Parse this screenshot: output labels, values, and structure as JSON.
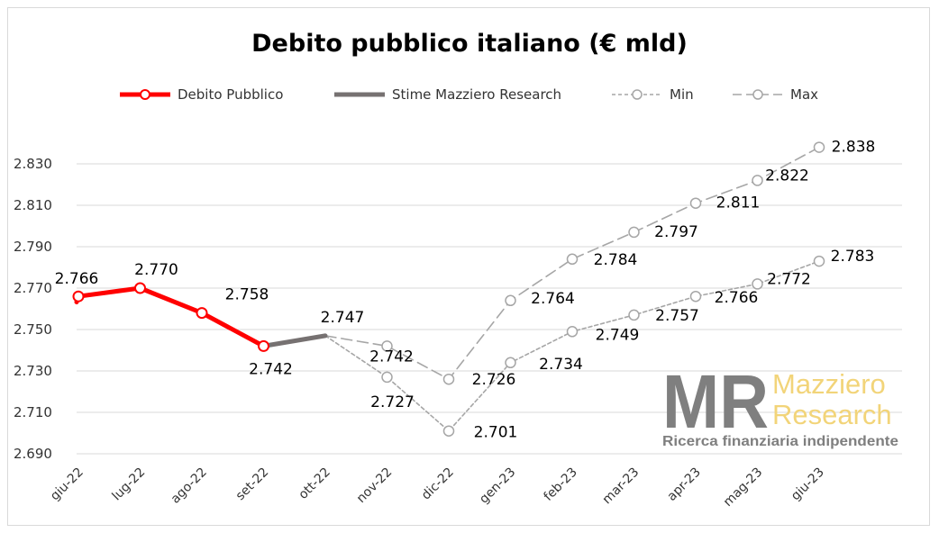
{
  "chart_data": {
    "type": "line",
    "title": "Debito pubblico italiano (€ mld)",
    "xlabel": "",
    "ylabel": "",
    "categories": [
      "giu-22",
      "lug-22",
      "ago-22",
      "set-22",
      "ott-22",
      "nov-22",
      "dic-22",
      "gen-23",
      "feb-23",
      "mar-23",
      "apr-23",
      "mag-23",
      "giu-23"
    ],
    "ylim": [
      2690,
      2840
    ],
    "yticks": [
      2690,
      2710,
      2730,
      2750,
      2770,
      2790,
      2810,
      2830
    ],
    "ytick_labels": [
      "2.690",
      "2.710",
      "2.730",
      "2.750",
      "2.770",
      "2.790",
      "2.810",
      "2.830"
    ],
    "grid": true,
    "legend_position": "top",
    "series": [
      {
        "name": "Debito Pubblico",
        "color": "#ff0000",
        "style": "solid-thick",
        "marker": "circle",
        "values": [
          2766,
          2770,
          2758,
          2742,
          null,
          null,
          null,
          null,
          null,
          null,
          null,
          null,
          null
        ],
        "labels": [
          "2.766",
          "2.770",
          "2.758",
          "2.742",
          "",
          "",
          "",
          "",
          "",
          "",
          "",
          "",
          ""
        ]
      },
      {
        "name": "Stime Mazziero Research",
        "color": "#767171",
        "style": "solid-thick",
        "marker": "none",
        "values": [
          null,
          null,
          null,
          2742,
          2747,
          null,
          null,
          null,
          null,
          null,
          null,
          null,
          null
        ],
        "labels": [
          "",
          "",
          "",
          "",
          "2.747",
          "",
          "",
          "",
          "",
          "",
          "",
          "",
          ""
        ]
      },
      {
        "name": "Min",
        "color": "#a6a6a6",
        "style": "short-dash",
        "marker": "open-circle",
        "values": [
          null,
          null,
          null,
          null,
          2747,
          2727,
          2701,
          2734,
          2749,
          2757,
          2766,
          2772,
          2783
        ],
        "labels": [
          "",
          "",
          "",
          "",
          "",
          "2.727",
          "2.701",
          "2.734",
          "2.749",
          "2.757",
          "2.766",
          "2.772",
          "2.783"
        ]
      },
      {
        "name": "Max",
        "color": "#a6a6a6",
        "style": "long-dash",
        "marker": "open-circle",
        "values": [
          null,
          null,
          null,
          null,
          2747,
          2742,
          2726,
          2764,
          2784,
          2797,
          2811,
          2822,
          2838
        ],
        "labels": [
          "",
          "",
          "",
          "",
          "",
          "2.742",
          "2.726",
          "2.764",
          "2.784",
          "2.797",
          "2.811",
          "2.822",
          "2.838"
        ]
      }
    ]
  },
  "logo": {
    "mark": "MR",
    "name_line1": "Mazziero",
    "name_line2": "Research",
    "tagline": "Ricerca finanziaria indipendente",
    "mark_color": "#7f7f7f",
    "name_color": "#f2d479"
  }
}
